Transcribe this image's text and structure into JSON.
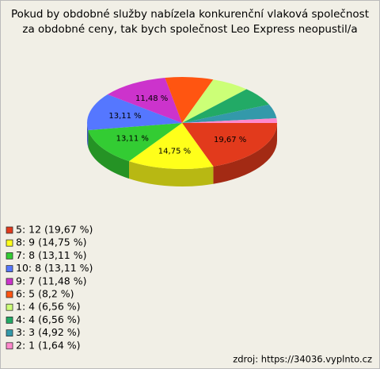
{
  "chart_data": {
    "type": "pie",
    "title": [
      "Pokud by obdobné služby nabízela konkurenční vlaková společnost",
      "za obdobné ceny, tak bych společnost Leo Express neopustil/a"
    ],
    "categories": [
      "5: 12 (19,67 %)",
      "8: 9 (14,75 %)",
      "7: 8 (13,11 %)",
      "10: 8 (13,11 %)",
      "9: 7 (11,48 %)",
      "6: 5 (8,2 %)",
      "1: 4 (6,56 %)",
      "4: 4 (6,56 %)",
      "3: 3 (4,92 %)",
      "2: 1 (1,64 %)"
    ],
    "values": [
      19.67,
      14.75,
      13.11,
      13.11,
      11.48,
      8.2,
      6.56,
      6.56,
      4.92,
      1.64
    ],
    "value_labels": [
      "19,67 %",
      "14,75 %",
      "13,11 %",
      "13,11 %",
      "11,48 %",
      null,
      null,
      null,
      null,
      null
    ],
    "colors": [
      "#e23a1c",
      "#ffff1a",
      "#33cc33",
      "#5577ff",
      "#cc33cc",
      "#ff5511",
      "#ccff77",
      "#22aa66",
      "#3399aa",
      "#ff88cc"
    ],
    "footer": "zdroj: https://34036.vyplnto.cz"
  }
}
